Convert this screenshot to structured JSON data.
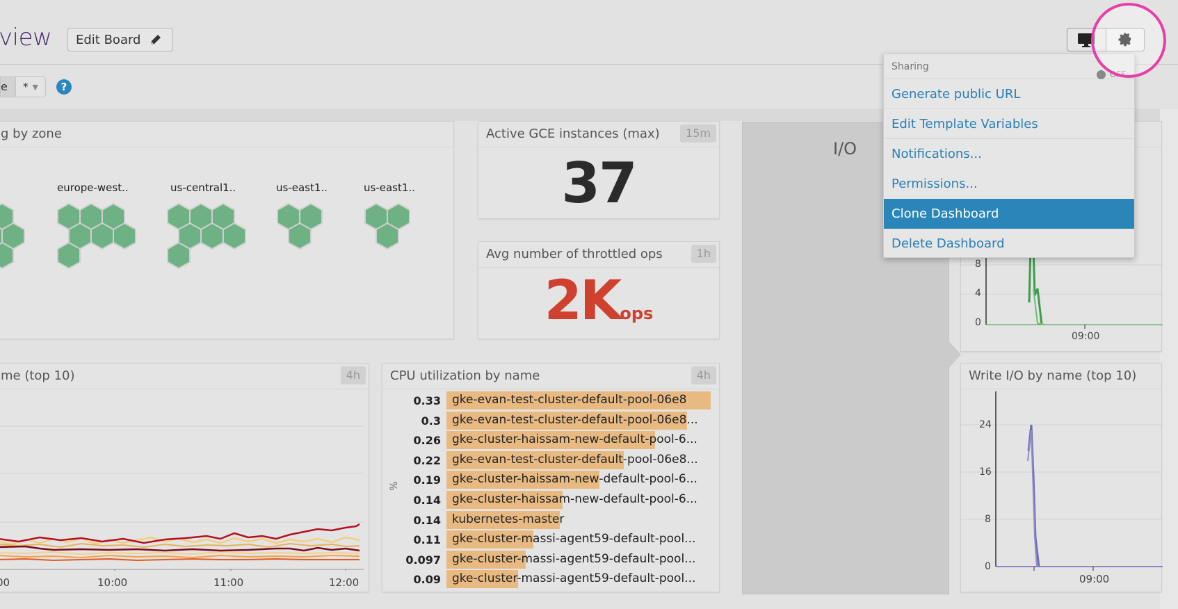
{
  "header": {
    "title": "view",
    "edit_board_label": "Edit Board",
    "template_var_label": "e",
    "template_var_value": "*",
    "help_icon": "?"
  },
  "toolbar": {
    "monitor_icon": "monitor-icon",
    "gear_icon": "gear-icon"
  },
  "settings_menu": {
    "sharing_label": "Sharing",
    "sharing_state": "OFF",
    "items": [
      {
        "label": "Generate public URL",
        "active": false
      },
      {
        "label": "Edit Template Variables",
        "active": false
      },
      {
        "label": "Notifications...",
        "active": false
      },
      {
        "label": "Permissions...",
        "active": false
      },
      {
        "label": "Clone Dashboard",
        "active": true
      },
      {
        "label": "Delete Dashboard",
        "active": false
      }
    ]
  },
  "panels": {
    "hostmap": {
      "title": "g by zone",
      "groups": [
        {
          "label": "",
          "hexes": 6
        },
        {
          "label": "europe-west..",
          "hexes": 7
        },
        {
          "label": "us-central1..",
          "hexes": 7
        },
        {
          "label": "us-east1..",
          "hexes": 3
        },
        {
          "label": "us-east1..",
          "hexes": 3
        }
      ],
      "hex_color": "#6db184"
    },
    "active_instances": {
      "title": "Active GCE instances (max)",
      "timeframe": "15m",
      "value": "37"
    },
    "throttled_ops": {
      "title": "Avg number of throttled ops",
      "timeframe": "1h",
      "value": "2K",
      "unit": "ops",
      "color": "#d0402e"
    },
    "io_group": {
      "title": "I/O"
    },
    "timeseries_left": {
      "title": "me (top 10)",
      "timeframe": "4h",
      "x_ticks": [
        "00",
        "10:00",
        "11:00",
        "12:00"
      ]
    },
    "cpu_util": {
      "title": "CPU utilization by name",
      "timeframe": "4h",
      "axis_unit": "%",
      "rows": [
        {
          "value": "0.33",
          "name": "gke-evan-test-cluster-default-pool-06e8",
          "pct": 1.0
        },
        {
          "value": "0.3",
          "name": "gke-evan-test-cluster-default-pool-06e8...",
          "pct": 0.91
        },
        {
          "value": "0.26",
          "name": "gke-cluster-haissam-new-default-pool-6...",
          "pct": 0.79
        },
        {
          "value": "0.22",
          "name": "gke-evan-test-cluster-default-pool-06e8...",
          "pct": 0.67
        },
        {
          "value": "0.19",
          "name": "gke-cluster-haissam-new-default-pool-6...",
          "pct": 0.58
        },
        {
          "value": "0.14",
          "name": "gke-cluster-haissam-new-default-pool-6...",
          "pct": 0.44
        },
        {
          "value": "0.14",
          "name": "kubernetes-master",
          "pct": 0.43
        },
        {
          "value": "0.11",
          "name": "gke-cluster-massi-agent59-default-pool...",
          "pct": 0.33
        },
        {
          "value": "0.097",
          "name": "gke-cluster-massi-agent59-default-pool...",
          "pct": 0.3
        },
        {
          "value": "0.09",
          "name": "gke-cluster-massi-agent59-default-pool...",
          "pct": 0.27
        }
      ]
    },
    "read_io": {
      "y_ticks": [
        "8",
        "4",
        "0"
      ],
      "x_ticks": [
        "09:00"
      ],
      "color": "#3e9b4b"
    },
    "write_io": {
      "title": "Write I/O by name (top 10)",
      "y_ticks": [
        "24",
        "16",
        "8",
        "0"
      ],
      "x_ticks": [
        "09:00"
      ],
      "color": "#6f6db3"
    }
  }
}
